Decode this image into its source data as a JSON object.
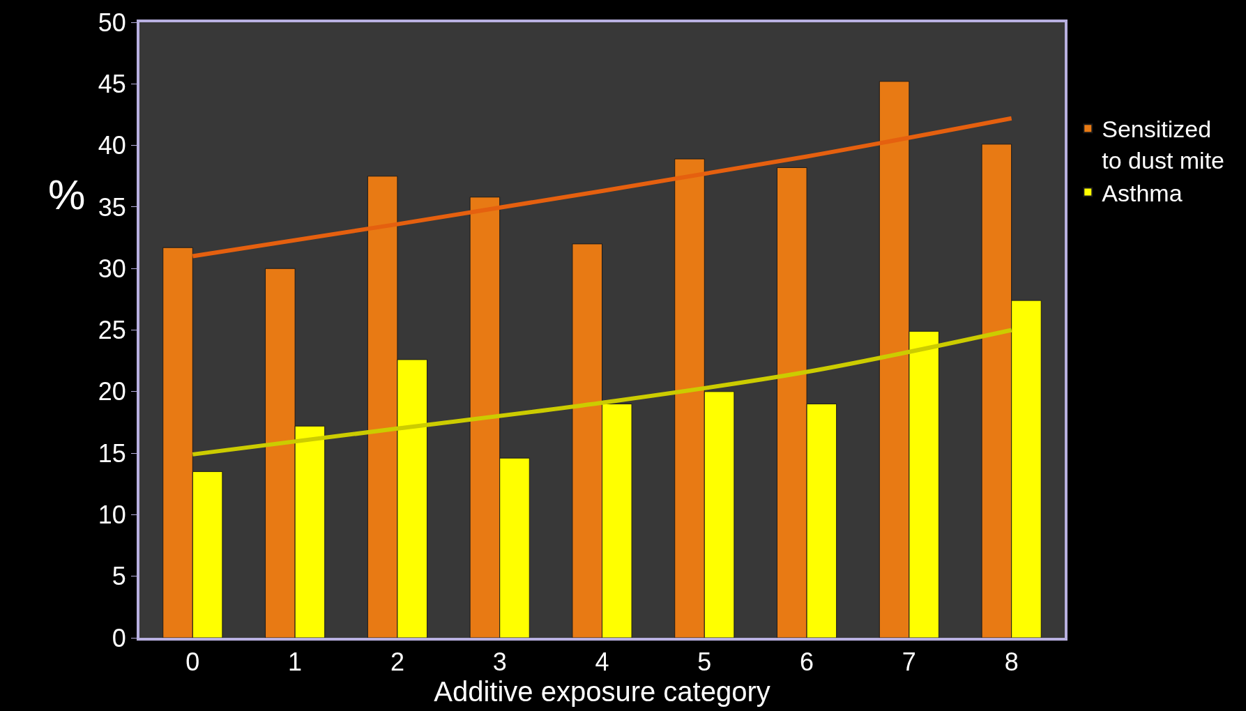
{
  "chart_data": {
    "type": "bar",
    "xlabel": "Additive exposure category",
    "ylabel": "%",
    "categories": [
      "0",
      "1",
      "2",
      "3",
      "4",
      "5",
      "6",
      "7",
      "8"
    ],
    "series": [
      {
        "name": "Sensitized to dust mite",
        "color": "#e87a14",
        "values": [
          31.7,
          30,
          37.5,
          35.8,
          32,
          38.9,
          38.2,
          45.2,
          40.1
        ]
      },
      {
        "name": "Asthma",
        "color": "#ffff00",
        "values": [
          13.5,
          17.2,
          22.6,
          14.6,
          19,
          20,
          19,
          24.9,
          27.4
        ]
      },
      {
        "type": "line",
        "color": "#e5600f",
        "x": [
          "0",
          "2",
          "4",
          "6",
          "8"
        ],
        "values": [
          31,
          33.6,
          36.3,
          39.1,
          42.2
        ]
      },
      {
        "type": "line",
        "color": "#cccc00",
        "x": [
          "0",
          "2",
          "4",
          "6",
          "8"
        ],
        "values": [
          14.9,
          17,
          19.1,
          21.6,
          25
        ]
      }
    ],
    "ylim": [
      0,
      50
    ],
    "yticks": [
      0,
      5,
      10,
      15,
      20,
      25,
      30,
      35,
      40,
      45,
      50
    ],
    "grid": false,
    "legend": "top right",
    "marker": "none",
    "line_style": "solid"
  }
}
